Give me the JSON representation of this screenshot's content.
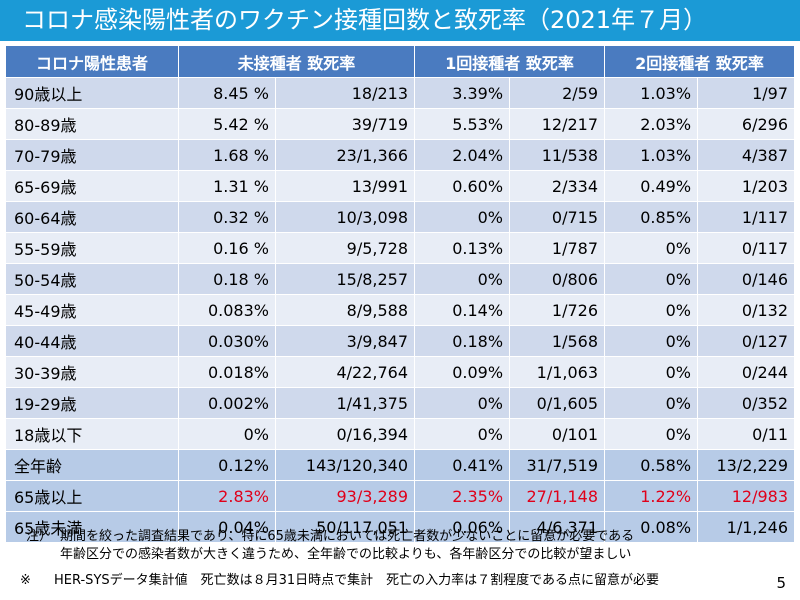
{
  "title": "コロナ感染陽性者のワクチン接種回数と致死率（2021年７月）",
  "headers": [
    "コロナ陽性患者",
    "未接種者 致死率",
    "1回接種者 致死率",
    "2回接種者 致死率"
  ],
  "rows": [
    {
      "age": "90歳以上",
      "u_rate": "8.45 %",
      "u_frac": "18/213",
      "d1_rate": "3.39%",
      "d1_frac": "2/59",
      "d2_rate": "1.03%",
      "d2_frac": "1/97"
    },
    {
      "age": "80-89歳",
      "u_rate": "5.42 %",
      "u_frac": "39/719",
      "d1_rate": "5.53%",
      "d1_frac": "12/217",
      "d2_rate": "2.03%",
      "d2_frac": "6/296"
    },
    {
      "age": "70-79歳",
      "u_rate": "1.68 %",
      "u_frac": "23/1,366",
      "d1_rate": "2.04%",
      "d1_frac": "11/538",
      "d2_rate": "1.03%",
      "d2_frac": "4/387"
    },
    {
      "age": "65-69歳",
      "u_rate": "1.31 %",
      "u_frac": "13/991",
      "d1_rate": "0.60%",
      "d1_frac": "2/334",
      "d2_rate": "0.49%",
      "d2_frac": "1/203"
    },
    {
      "age": "60-64歳",
      "u_rate": "0.32 %",
      "u_frac": "10/3,098",
      "d1_rate": "0%",
      "d1_frac": "0/715",
      "d2_rate": "0.85%",
      "d2_frac": "1/117"
    },
    {
      "age": "55-59歳",
      "u_rate": "0.16 %",
      "u_frac": "9/5,728",
      "d1_rate": "0.13%",
      "d1_frac": "1/787",
      "d2_rate": "0%",
      "d2_frac": "0/117"
    },
    {
      "age": "50-54歳",
      "u_rate": "0.18 %",
      "u_frac": "15/8,257",
      "d1_rate": "0%",
      "d1_frac": "0/806",
      "d2_rate": "0%",
      "d2_frac": "0/146"
    },
    {
      "age": "45-49歳",
      "u_rate": "0.083%",
      "u_frac": "8/9,588",
      "d1_rate": "0.14%",
      "d1_frac": "1/726",
      "d2_rate": "0%",
      "d2_frac": "0/132"
    },
    {
      "age": "40-44歳",
      "u_rate": "0.030%",
      "u_frac": "3/9,847",
      "d1_rate": "0.18%",
      "d1_frac": "1/568",
      "d2_rate": "0%",
      "d2_frac": "0/127"
    },
    {
      "age": "30-39歳",
      "u_rate": "0.018%",
      "u_frac": "4/22,764",
      "d1_rate": "0.09%",
      "d1_frac": "1/1,063",
      "d2_rate": "0%",
      "d2_frac": "0/244"
    },
    {
      "age": "19-29歳",
      "u_rate": "0.002%",
      "u_frac": "1/41,375",
      "d1_rate": "0%",
      "d1_frac": "0/1,605",
      "d2_rate": "0%",
      "d2_frac": "0/352"
    },
    {
      "age": "18歳以下",
      "u_rate": "0%",
      "u_frac": "0/16,394",
      "d1_rate": "0%",
      "d1_frac": "0/101",
      "d2_rate": "0%",
      "d2_frac": "0/11"
    }
  ],
  "summary_rows": [
    {
      "age": "全年齢",
      "u_rate": "0.12%",
      "u_frac": "143/120,340",
      "d1_rate": "0.41%",
      "d1_frac": "31/7,519",
      "d2_rate": "0.58%",
      "d2_frac": "13/2,229",
      "highlight": false
    },
    {
      "age": "65歳以上",
      "u_rate": "2.83%",
      "u_frac": "93/3,289",
      "d1_rate": "2.35%",
      "d1_frac": "27/1,148",
      "d2_rate": "1.22%",
      "d2_frac": "12/983",
      "highlight": true
    },
    {
      "age": "65歳未満",
      "u_rate": "0.04%",
      "u_frac": "50/117,051",
      "d1_rate": "0.06%",
      "d1_frac": "4/6,371",
      "d2_rate": "0.08%",
      "d2_frac": "1/1,246",
      "highlight": false
    }
  ],
  "notes": {
    "mark": "注）",
    "line1": "期間を絞った調査結果であり、特に65歳未満においては死亡者数が少ないことに留意が必要である",
    "line2": "年齢区分での感染者数が大きく違うため、全年齢での比較よりも、各年齢区分での比較が望ましい"
  },
  "footnote": {
    "mark": "※",
    "text": "HER-SYSデータ集計値　死亡数は８月31日時点で集計　死亡の入力率は７割程度である点に留意が必要"
  },
  "page_number": "5",
  "colors": {
    "title_bg": "#1b9ad6",
    "header_bg": "#4a7bc0",
    "row_light": "#cfd9ec",
    "row_alt": "#e8edf6",
    "row_summary": "#b7cbe7",
    "highlight_red": "#e0001a"
  }
}
